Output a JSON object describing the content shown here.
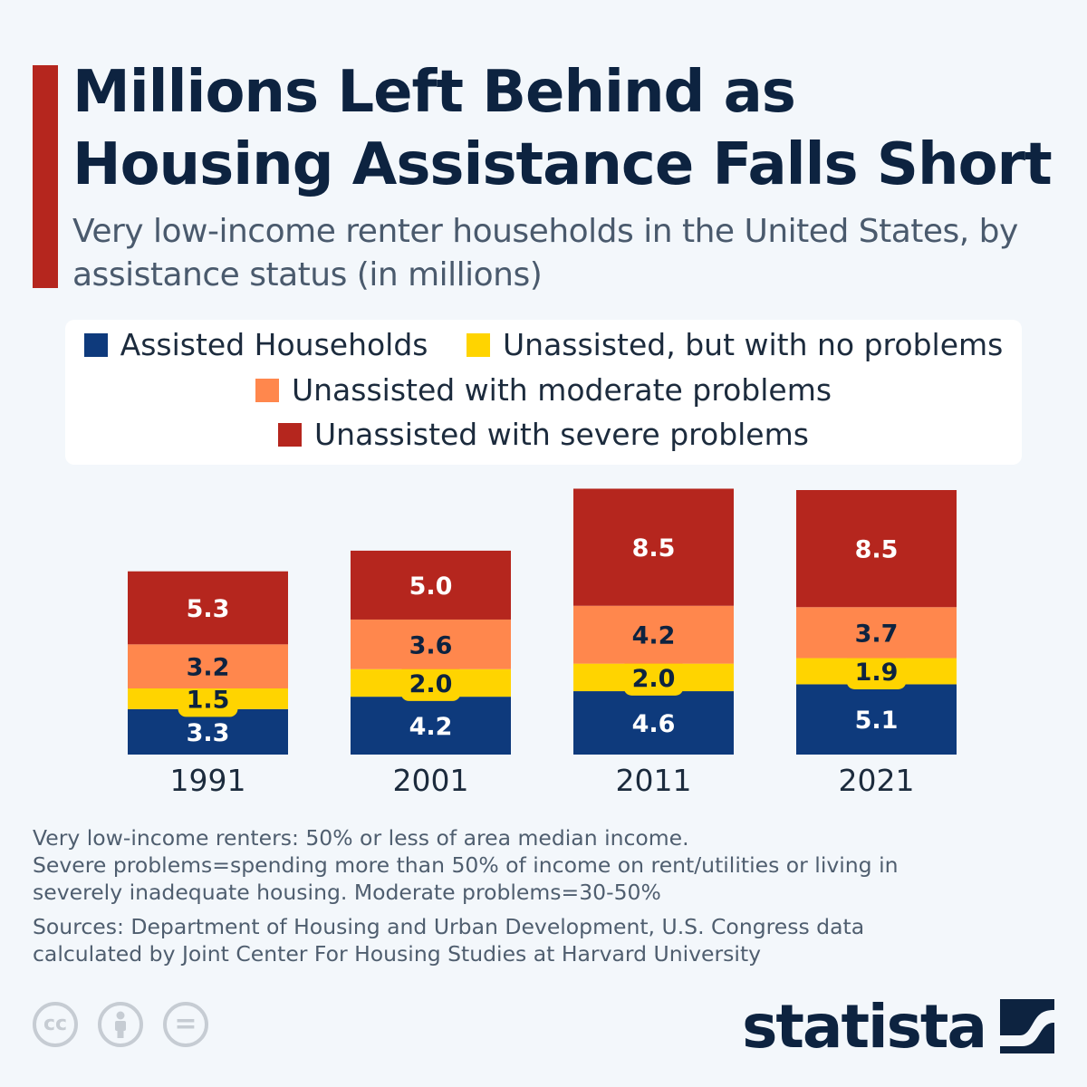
{
  "title": "Millions Left Behind as Housing Assistance Falls Short",
  "subtitle": "Very low-income renter households in the United States, by assistance status (in millions)",
  "notes": {
    "definition": "Very low-income renters: 50% or less of area median income.",
    "problems": "Severe problems=spending more than 50% of income on rent/utilities or living in severely inadequate housing. Moderate problems=30-50%",
    "sources": "Sources: Department of Housing and Urban Development, U.S. Congress data calculated by Joint Center For Housing Studies at Harvard University"
  },
  "logo": {
    "text": "statista",
    "icon": "statista-mark-icon"
  },
  "license_icons": [
    "cc-icon",
    "attribution-icon",
    "no-derivatives-icon"
  ],
  "license_labels": {
    "cc": "cc",
    "equals": "="
  },
  "colors": {
    "accent": "#b5261e",
    "assisted": "#0e3a7c",
    "no_problems": "#ffd400",
    "moderate": "#ff874d",
    "severe": "#b5261e"
  },
  "chart_data": {
    "type": "bar",
    "stacked": true,
    "title": "Very low-income renter households in the United States, by assistance status (in millions)",
    "xlabel": "",
    "ylabel": "",
    "categories": [
      "1991",
      "2001",
      "2011",
      "2021"
    ],
    "series": [
      {
        "name": "Assisted Households",
        "color": "#0e3a7c",
        "label_color": "#ffffff",
        "values": [
          3.3,
          4.2,
          4.6,
          5.1
        ]
      },
      {
        "name": "Unassisted, but with no problems",
        "color": "#ffd400",
        "label_color": "#0d2340",
        "values": [
          1.5,
          2.0,
          2.0,
          1.9
        ]
      },
      {
        "name": "Unassisted with moderate problems",
        "color": "#ff874d",
        "label_color": "#0d2340",
        "values": [
          3.2,
          3.6,
          4.2,
          3.7
        ]
      },
      {
        "name": "Unassisted with severe problems",
        "color": "#b5261e",
        "label_color": "#ffffff",
        "values": [
          5.3,
          5.0,
          8.5,
          8.5
        ]
      }
    ],
    "ylim": [
      0,
      19.2
    ],
    "legend_position": "top",
    "grid": false
  }
}
